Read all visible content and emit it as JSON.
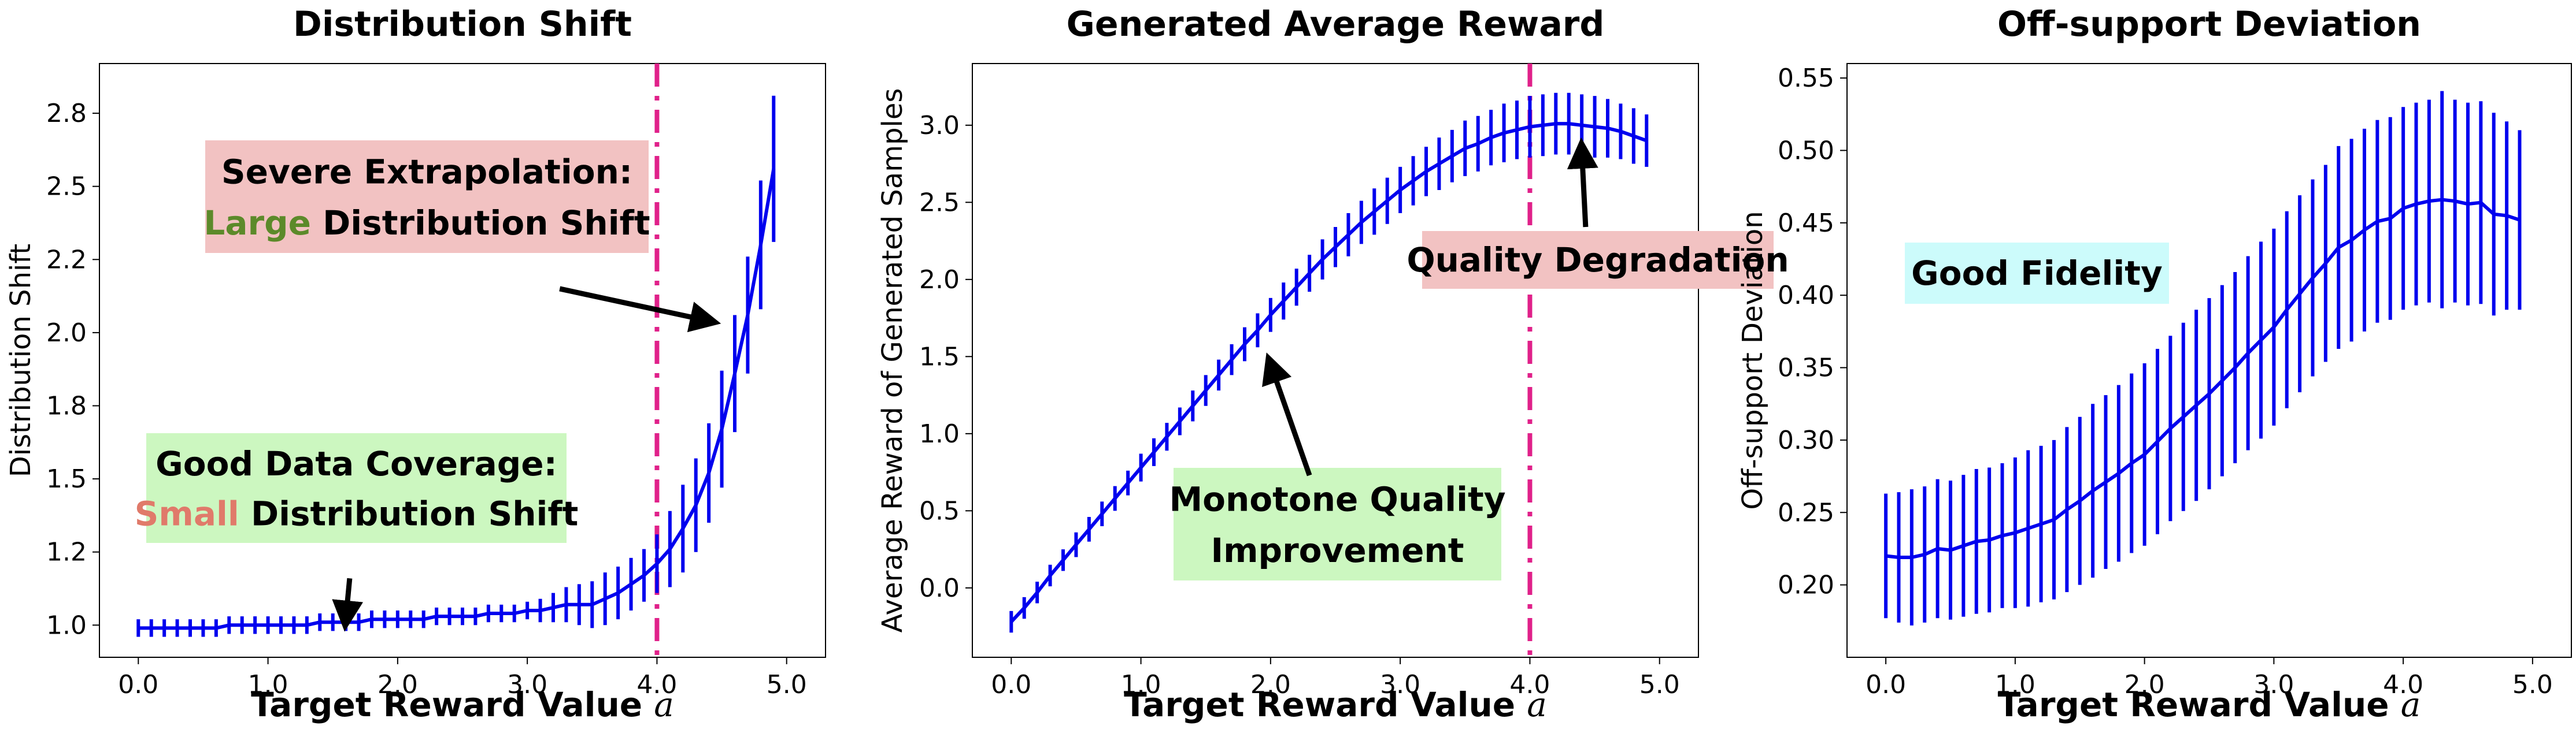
{
  "colors": {
    "series": "#0000ee",
    "vline": "#e0218a",
    "box_pink": "#f2c2c2",
    "box_green": "#ccf7c0",
    "box_cyan": "#ccfbfb",
    "word_large": "#5c8a2a",
    "word_small": "#e07a6a"
  },
  "chart_data": [
    {
      "type": "line",
      "title": "Distribution Shift",
      "xlabel": "Target Reward Value",
      "xlabel_var": "a",
      "ylabel": "Distribution Shift",
      "xlim": [
        -0.3,
        5.3
      ],
      "ylim": [
        0.89,
        2.92
      ],
      "xticks": [
        "0.0",
        "1.0",
        "2.0",
        "3.0",
        "4.0",
        "5.0"
      ],
      "xtick_values": [
        0,
        1,
        2,
        3,
        4,
        5
      ],
      "yticks": [
        "1.0",
        "1.2",
        "1.5",
        "1.8",
        "2.0",
        "2.2",
        "2.5",
        "2.8"
      ],
      "ytick_values": [
        1.0,
        1.25,
        1.5,
        1.75,
        2.0,
        2.25,
        2.5,
        2.75
      ],
      "vline_x": 4.0,
      "grid": false,
      "series": [
        {
          "x": [
            0.0,
            0.1,
            0.2,
            0.3,
            0.4,
            0.5,
            0.6,
            0.7,
            0.8,
            0.9,
            1.0,
            1.1,
            1.2,
            1.3,
            1.4,
            1.5,
            1.6,
            1.7,
            1.8,
            1.9,
            2.0,
            2.1,
            2.2,
            2.3,
            2.4,
            2.5,
            2.6,
            2.7,
            2.8,
            2.9,
            3.0,
            3.1,
            3.2,
            3.3,
            3.4,
            3.5,
            3.6,
            3.7,
            3.8,
            3.9,
            4.0,
            4.1,
            4.2,
            4.3,
            4.4,
            4.5,
            4.6,
            4.7,
            4.8,
            4.9
          ],
          "y": [
            0.99,
            0.99,
            0.99,
            0.99,
            0.99,
            0.99,
            0.99,
            1.0,
            1.0,
            1.0,
            1.0,
            1.0,
            1.0,
            1.0,
            1.01,
            1.01,
            1.01,
            1.01,
            1.02,
            1.02,
            1.02,
            1.02,
            1.02,
            1.03,
            1.03,
            1.03,
            1.03,
            1.04,
            1.04,
            1.04,
            1.05,
            1.05,
            1.06,
            1.07,
            1.07,
            1.07,
            1.09,
            1.11,
            1.14,
            1.17,
            1.21,
            1.26,
            1.33,
            1.41,
            1.52,
            1.67,
            1.86,
            2.06,
            2.3,
            2.56
          ],
          "err": [
            0.03,
            0.03,
            0.03,
            0.03,
            0.03,
            0.03,
            0.03,
            0.03,
            0.03,
            0.03,
            0.03,
            0.03,
            0.03,
            0.03,
            0.03,
            0.03,
            0.03,
            0.03,
            0.03,
            0.03,
            0.03,
            0.03,
            0.03,
            0.03,
            0.03,
            0.03,
            0.03,
            0.03,
            0.03,
            0.03,
            0.03,
            0.04,
            0.05,
            0.06,
            0.07,
            0.08,
            0.09,
            0.09,
            0.09,
            0.09,
            0.1,
            0.13,
            0.15,
            0.16,
            0.17,
            0.2,
            0.2,
            0.2,
            0.22,
            0.25
          ]
        }
      ],
      "annotations": [
        {
          "style": "pink",
          "lines": [
            [
              {
                "text": "Severe Extrapolation:",
                "color": "#000000"
              }
            ],
            [
              {
                "text": "Large",
                "color": "#5c8a2a"
              },
              {
                "text": " Distribution Shift",
                "color": "#000000"
              }
            ]
          ],
          "arrow_to": [
            4.4,
            2.04
          ],
          "arrow_from": [
            3.25,
            2.15
          ]
        },
        {
          "style": "green",
          "lines": [
            [
              {
                "text": "Good Data Coverage:",
                "color": "#000000"
              }
            ],
            [
              {
                "text": "Small",
                "color": "#e07a6a"
              },
              {
                "text": " Distribution Shift",
                "color": "#000000"
              }
            ]
          ],
          "arrow_to": [
            1.6,
            1.02
          ],
          "arrow_from": [
            1.63,
            1.16
          ]
        }
      ]
    },
    {
      "type": "line",
      "title": "Generated Average Reward",
      "xlabel": "Target Reward Value",
      "xlabel_var": "a",
      "ylabel": "Average Reward  of Generated Samples",
      "xlim": [
        -0.3,
        5.3
      ],
      "ylim": [
        -0.45,
        3.4
      ],
      "xticks": [
        "0.0",
        "1.0",
        "2.0",
        "3.0",
        "4.0",
        "5.0"
      ],
      "xtick_values": [
        0,
        1,
        2,
        3,
        4,
        5
      ],
      "yticks": [
        "0.0",
        "0.5",
        "1.0",
        "1.5",
        "2.0",
        "2.5",
        "3.0"
      ],
      "ytick_values": [
        0,
        0.5,
        1.0,
        1.5,
        2.0,
        2.5,
        3.0
      ],
      "vline_x": 4.0,
      "grid": false,
      "series": [
        {
          "x": [
            0.0,
            0.1,
            0.2,
            0.3,
            0.4,
            0.5,
            0.6,
            0.7,
            0.8,
            0.9,
            1.0,
            1.1,
            1.2,
            1.3,
            1.4,
            1.5,
            1.6,
            1.7,
            1.8,
            1.9,
            2.0,
            2.1,
            2.2,
            2.3,
            2.4,
            2.5,
            2.6,
            2.7,
            2.8,
            2.9,
            3.0,
            3.1,
            3.2,
            3.3,
            3.4,
            3.5,
            3.6,
            3.7,
            3.8,
            3.9,
            4.0,
            4.1,
            4.2,
            4.3,
            4.4,
            4.5,
            4.6,
            4.7,
            4.8,
            4.9
          ],
          "y": [
            -0.22,
            -0.13,
            -0.03,
            0.08,
            0.18,
            0.28,
            0.38,
            0.48,
            0.58,
            0.68,
            0.78,
            0.88,
            0.98,
            1.08,
            1.18,
            1.28,
            1.38,
            1.48,
            1.58,
            1.67,
            1.77,
            1.86,
            1.95,
            2.04,
            2.13,
            2.21,
            2.29,
            2.37,
            2.44,
            2.51,
            2.58,
            2.64,
            2.7,
            2.75,
            2.8,
            2.85,
            2.88,
            2.92,
            2.95,
            2.97,
            2.99,
            3.0,
            3.01,
            3.01,
            3.0,
            2.99,
            2.98,
            2.96,
            2.93,
            2.9
          ],
          "err": [
            0.07,
            0.07,
            0.07,
            0.07,
            0.07,
            0.08,
            0.08,
            0.08,
            0.08,
            0.08,
            0.09,
            0.09,
            0.09,
            0.09,
            0.1,
            0.1,
            0.1,
            0.1,
            0.11,
            0.11,
            0.11,
            0.12,
            0.12,
            0.12,
            0.13,
            0.13,
            0.14,
            0.14,
            0.15,
            0.15,
            0.15,
            0.16,
            0.16,
            0.17,
            0.17,
            0.18,
            0.18,
            0.18,
            0.19,
            0.19,
            0.2,
            0.2,
            0.2,
            0.2,
            0.2,
            0.2,
            0.19,
            0.18,
            0.18,
            0.17
          ]
        }
      ],
      "annotations": [
        {
          "style": "pink",
          "lines": [
            [
              {
                "text": "Quality Degradation",
                "color": "#000000"
              }
            ]
          ],
          "arrow_to": [
            4.4,
            2.84
          ],
          "arrow_from": [
            4.43,
            2.34
          ]
        },
        {
          "style": "green",
          "lines": [
            [
              {
                "text": "Monotone Quality",
                "color": "#000000"
              }
            ],
            [
              {
                "text": "Improvement",
                "color": "#000000"
              }
            ]
          ],
          "arrow_to": [
            2.0,
            1.45
          ],
          "arrow_from": [
            2.3,
            0.73
          ]
        }
      ]
    },
    {
      "type": "line",
      "title": "Off-support Deviation",
      "xlabel": "Target Reward Value",
      "xlabel_var": "a",
      "ylabel": "Off-support Deviation",
      "xlim": [
        -0.3,
        5.3
      ],
      "ylim": [
        0.15,
        0.56
      ],
      "xticks": [
        "0.0",
        "1.0",
        "2.0",
        "3.0",
        "4.0",
        "5.0"
      ],
      "xtick_values": [
        0,
        1,
        2,
        3,
        4,
        5
      ],
      "yticks": [
        "0.20",
        "0.25",
        "0.30",
        "0.35",
        "0.40",
        "0.45",
        "0.50",
        "0.55"
      ],
      "ytick_values": [
        0.2,
        0.25,
        0.3,
        0.35,
        0.4,
        0.45,
        0.5,
        0.55
      ],
      "vline_x": null,
      "grid": false,
      "series": [
        {
          "x": [
            0.0,
            0.1,
            0.2,
            0.3,
            0.4,
            0.5,
            0.6,
            0.7,
            0.8,
            0.9,
            1.0,
            1.1,
            1.2,
            1.3,
            1.4,
            1.5,
            1.6,
            1.7,
            1.8,
            1.9,
            2.0,
            2.1,
            2.2,
            2.3,
            2.4,
            2.5,
            2.6,
            2.7,
            2.8,
            2.9,
            3.0,
            3.1,
            3.2,
            3.3,
            3.4,
            3.5,
            3.6,
            3.7,
            3.8,
            3.9,
            4.0,
            4.1,
            4.2,
            4.3,
            4.4,
            4.5,
            4.6,
            4.7,
            4.8,
            4.9
          ],
          "y": [
            0.22,
            0.219,
            0.219,
            0.221,
            0.225,
            0.224,
            0.227,
            0.23,
            0.231,
            0.234,
            0.236,
            0.239,
            0.242,
            0.245,
            0.252,
            0.258,
            0.265,
            0.271,
            0.277,
            0.284,
            0.29,
            0.299,
            0.308,
            0.316,
            0.324,
            0.332,
            0.341,
            0.35,
            0.36,
            0.369,
            0.378,
            0.39,
            0.401,
            0.412,
            0.422,
            0.433,
            0.438,
            0.445,
            0.451,
            0.453,
            0.46,
            0.463,
            0.465,
            0.466,
            0.465,
            0.463,
            0.464,
            0.456,
            0.455,
            0.452
          ],
          "err": [
            0.043,
            0.045,
            0.047,
            0.047,
            0.048,
            0.048,
            0.049,
            0.05,
            0.05,
            0.05,
            0.052,
            0.054,
            0.054,
            0.055,
            0.057,
            0.058,
            0.06,
            0.06,
            0.061,
            0.062,
            0.063,
            0.064,
            0.064,
            0.065,
            0.066,
            0.066,
            0.066,
            0.066,
            0.067,
            0.068,
            0.068,
            0.068,
            0.068,
            0.068,
            0.068,
            0.07,
            0.07,
            0.07,
            0.07,
            0.07,
            0.07,
            0.07,
            0.07,
            0.075,
            0.07,
            0.07,
            0.07,
            0.07,
            0.065,
            0.062
          ]
        }
      ],
      "annotations": [
        {
          "style": "cyan",
          "lines": [
            [
              {
                "text": "Good Fidelity",
                "color": "#000000"
              }
            ]
          ],
          "arrow_to": null,
          "arrow_from": null
        }
      ]
    }
  ]
}
